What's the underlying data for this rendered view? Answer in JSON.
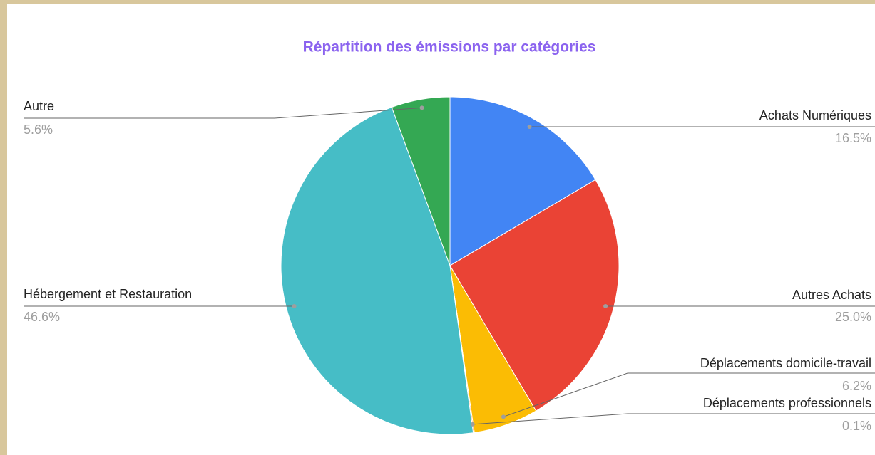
{
  "chart_data": {
    "type": "pie",
    "title": "Répartition des émissions par catégories",
    "categories": [
      "Achats Numériques",
      "Autres Achats",
      "Déplacements domicile-travail",
      "Déplacements professionnels",
      "Hébergement et Restauration",
      "Autre"
    ],
    "values": [
      16.5,
      25.0,
      6.2,
      0.1,
      46.6,
      5.6
    ],
    "value_labels": [
      "16.5%",
      "25.0%",
      "6.2%",
      "0.1%",
      "46.6%",
      "5.6%"
    ],
    "colors": [
      "#4285f4",
      "#ea4335",
      "#fbbc04",
      "#ff6d01",
      "#46bdc6",
      "#34a853"
    ]
  }
}
